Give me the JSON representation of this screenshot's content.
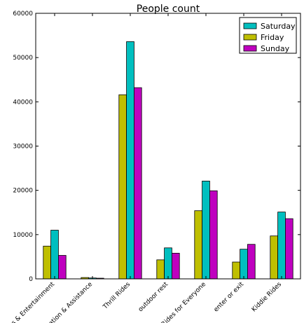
{
  "chart_data": {
    "type": "bar",
    "title": "People count",
    "xlabel": "",
    "ylabel": "",
    "categories": [
      "s & Entertainment",
      "ation & Assistance",
      "Thrill Rides",
      "outdoor rest",
      "Rides for Everyone",
      "enter or exit",
      "Kiddie Rides"
    ],
    "series": [
      {
        "name": "Friday",
        "color": "#bfbf00",
        "values": [
          7400,
          300,
          41600,
          4300,
          15400,
          3800,
          9700
        ]
      },
      {
        "name": "Saturday",
        "color": "#00bfbf",
        "values": [
          11000,
          200,
          53600,
          7000,
          22100,
          6700,
          15100
        ]
      },
      {
        "name": "Sunday",
        "color": "#bf00bf",
        "values": [
          5300,
          150,
          43200,
          5800,
          19900,
          7800,
          13600
        ]
      }
    ],
    "ylim": [
      0,
      60000
    ],
    "yticks": [
      0,
      10000,
      20000,
      30000,
      40000,
      50000,
      60000
    ],
    "legend": {
      "position": "top-right",
      "order": [
        "Saturday",
        "Friday",
        "Sunday"
      ]
    },
    "grid": false
  }
}
